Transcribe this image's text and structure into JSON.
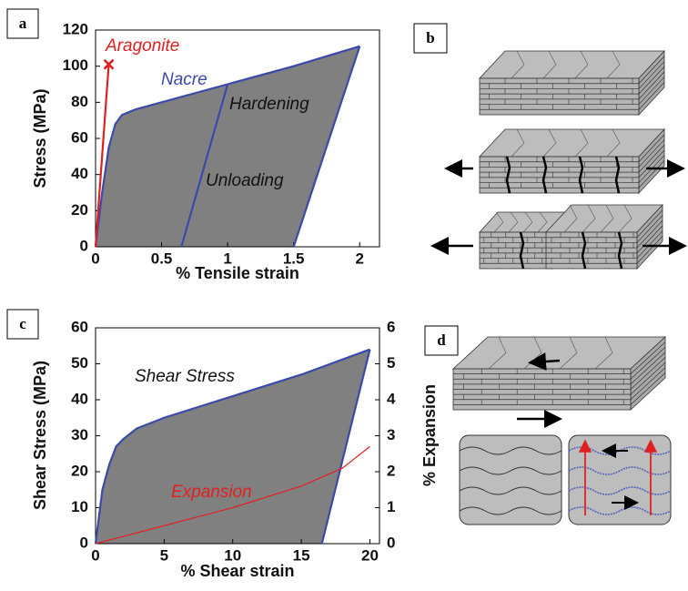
{
  "panel_labels": [
    "a",
    "b",
    "c",
    "d"
  ],
  "chart_data": [
    {
      "type": "line",
      "x_label": "% Tensile strain",
      "y_label": "Stress (MPa)",
      "annotations": [
        "Aragonite",
        "Nacre",
        "Hardening",
        "Unloading"
      ],
      "xlim": [
        0,
        2.15
      ],
      "ylim": [
        0,
        120
      ],
      "xticks": [
        0,
        0.5,
        1,
        1.5,
        2
      ],
      "yticks": [
        0,
        20,
        40,
        60,
        80,
        100,
        120
      ],
      "fill_color": "#808080",
      "series": [
        {
          "name": "Nacre",
          "color": "#3a4aa8",
          "x": [
            0,
            0.05,
            0.1,
            0.15,
            0.2,
            0.3,
            0.5,
            1.0,
            1.5,
            2.0
          ],
          "values": [
            0,
            30,
            55,
            68,
            73,
            76,
            80,
            90,
            100,
            111
          ]
        },
        {
          "color": "#3a4aa8",
          "x": [
            1.0,
            0.65
          ],
          "values": [
            90,
            0
          ]
        },
        {
          "color": "#3a4aa8",
          "x": [
            2.0,
            1.5
          ],
          "values": [
            111,
            0
          ]
        },
        {
          "name": "Aragonite",
          "color": "#e02020",
          "x": [
            0,
            0.1
          ],
          "values": [
            0,
            101
          ],
          "end_marker": "x"
        }
      ]
    },
    {
      "type": "line",
      "x_label": "% Shear strain",
      "y_label": "Shear Stress (MPa)",
      "y2_label": "% Expansion",
      "annotations": [
        "Shear Stress",
        "Expansion"
      ],
      "xlim": [
        0,
        20.7
      ],
      "ylim": [
        0,
        60
      ],
      "y2lim": [
        0,
        6
      ],
      "xticks": [
        0,
        5,
        10,
        15,
        20
      ],
      "yticks": [
        0,
        10,
        20,
        30,
        40,
        50,
        60
      ],
      "y2ticks": [
        0,
        1,
        2,
        3,
        4,
        5,
        6
      ],
      "fill_color": "#808080",
      "series": [
        {
          "name": "Shear Stress",
          "color": "#3a4aa8",
          "x": [
            0,
            0.5,
            1,
            1.5,
            2,
            3,
            5,
            10,
            15,
            20
          ],
          "values": [
            0,
            15,
            22,
            27,
            29,
            32,
            35,
            41,
            47,
            54
          ]
        },
        {
          "color": "#3a4aa8",
          "x": [
            20,
            16.5
          ],
          "values": [
            54,
            0
          ]
        },
        {
          "name": "Expansion",
          "color": "#e02020",
          "axis": "y2",
          "x": [
            0,
            5,
            10,
            15,
            18,
            20
          ],
          "values": [
            0,
            0.5,
            1.0,
            1.6,
            2.1,
            2.7
          ]
        }
      ]
    }
  ]
}
